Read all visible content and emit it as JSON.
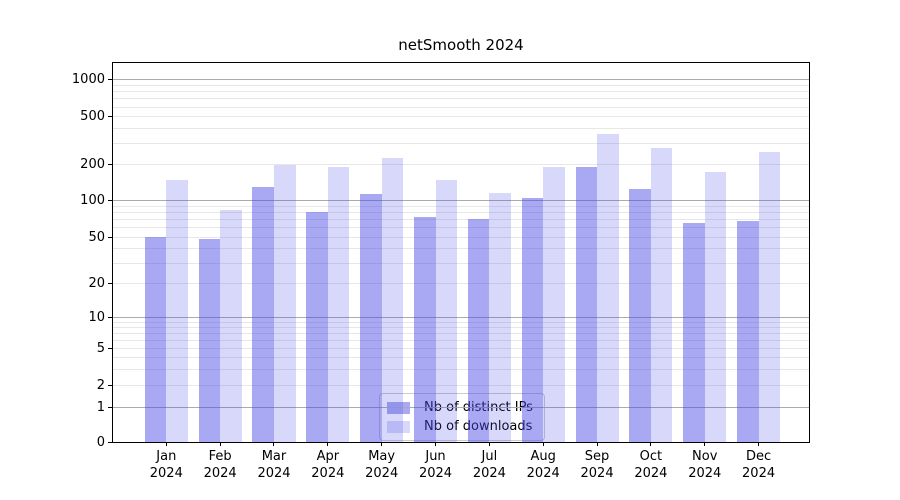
{
  "chart_data": {
    "type": "bar",
    "title": "netSmooth 2024",
    "categories": [
      "Jan",
      "Feb",
      "Mar",
      "Apr",
      "May",
      "Jun",
      "Jul",
      "Aug",
      "Sep",
      "Oct",
      "Nov",
      "Dec"
    ],
    "category_year": "2024",
    "series": [
      {
        "name": "Nb of distinct IPs",
        "color": "rgba(70,70,230,0.47)",
        "values": [
          50,
          48,
          131,
          80,
          114,
          74,
          70,
          106,
          190,
          124,
          65,
          68
        ]
      },
      {
        "name": "Nb of downloads",
        "color": "rgba(70,70,230,0.21)",
        "values": [
          148,
          84,
          198,
          192,
          226,
          150,
          116,
          192,
          358,
          275,
          173,
          253
        ]
      }
    ],
    "y_axis": {
      "scale": "symlog-like",
      "ticks": [
        0,
        1,
        2,
        5,
        10,
        20,
        50,
        100,
        200,
        500,
        1000
      ],
      "tick_fracs_from_top": [
        1.0,
        0.9094,
        0.8504,
        0.7533,
        0.6719,
        0.5827,
        0.4593,
        0.3635,
        0.2677,
        0.1417,
        0.0446
      ],
      "major_grid_values": [
        1,
        10,
        100,
        1000
      ],
      "minor_grid_mantissas": [
        2,
        3,
        4,
        5,
        6,
        7,
        8,
        9
      ],
      "minor_grid_exponents": [
        0,
        1,
        2
      ]
    },
    "x_layout": {
      "first_center_frac": 0.0766,
      "step_frac": 0.07736,
      "bar_width_frac": 0.03095
    },
    "grid": {
      "major_color": "#ababab",
      "minor_color": "#e7e7e7"
    },
    "legend": {
      "position": "lower center"
    }
  }
}
